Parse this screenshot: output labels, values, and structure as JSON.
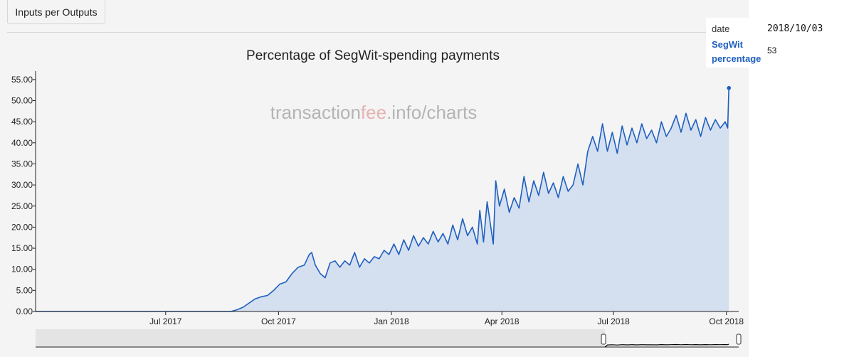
{
  "toolbar": {
    "tab_label": "Inputs per Outputs"
  },
  "tooltip": {
    "date_label": "date",
    "date_value": "2018/10/03",
    "series_label": "SegWit percentage",
    "value": "53"
  },
  "watermark": {
    "prefix": "transaction",
    "accent": "fee",
    "suffix": ".info/charts"
  },
  "colors": {
    "line": "#1f5fbf",
    "area": "#d4e0f0",
    "background": "#f4f4f4",
    "tooltip_label": "#1f5fbf",
    "watermark_accent": "#e6b2b2"
  },
  "chart_data": {
    "type": "area",
    "title": "Percentage of SegWit-spending payments",
    "xlabel": "",
    "ylabel": "",
    "ylim": [
      0,
      57
    ],
    "y_ticks": [
      "0.00",
      "5.00",
      "10.00",
      "15.00",
      "20.00",
      "25.00",
      "30.00",
      "35.00",
      "40.00",
      "45.00",
      "50.00",
      "55.00"
    ],
    "x_range": [
      "2017-03-17",
      "2018-10-11"
    ],
    "x_tick_labels": [
      {
        "date": "2017-07-01",
        "label": "Jul 2017"
      },
      {
        "date": "2017-10-01",
        "label": "Oct 2017"
      },
      {
        "date": "2018-01-01",
        "label": "Jan 2018"
      },
      {
        "date": "2018-04-01",
        "label": "Apr 2018"
      },
      {
        "date": "2018-07-01",
        "label": "Jul 2018"
      },
      {
        "date": "2018-10-01",
        "label": "Oct 2018"
      }
    ],
    "grid": false,
    "legend": "none",
    "series": [
      {
        "name": "SegWit percentage",
        "points": [
          [
            "2017-03-17",
            0
          ],
          [
            "2017-05-01",
            0
          ],
          [
            "2017-06-15",
            0
          ],
          [
            "2017-08-01",
            0
          ],
          [
            "2017-08-23",
            0
          ],
          [
            "2017-08-28",
            0.4
          ],
          [
            "2017-09-02",
            1
          ],
          [
            "2017-09-07",
            2
          ],
          [
            "2017-09-12",
            3
          ],
          [
            "2017-09-17",
            3.5
          ],
          [
            "2017-09-22",
            3.8
          ],
          [
            "2017-09-27",
            5
          ],
          [
            "2017-10-02",
            6.5
          ],
          [
            "2017-10-07",
            7
          ],
          [
            "2017-10-12",
            9
          ],
          [
            "2017-10-17",
            10.5
          ],
          [
            "2017-10-22",
            11
          ],
          [
            "2017-10-26",
            13.5
          ],
          [
            "2017-10-28",
            14
          ],
          [
            "2017-10-31",
            11
          ],
          [
            "2017-11-04",
            9
          ],
          [
            "2017-11-08",
            8
          ],
          [
            "2017-11-12",
            11.5
          ],
          [
            "2017-11-16",
            12
          ],
          [
            "2017-11-20",
            10.5
          ],
          [
            "2017-11-24",
            12
          ],
          [
            "2017-11-28",
            11
          ],
          [
            "2017-12-02",
            14
          ],
          [
            "2017-12-06",
            10.5
          ],
          [
            "2017-12-10",
            12.5
          ],
          [
            "2017-12-14",
            11.5
          ],
          [
            "2017-12-18",
            13
          ],
          [
            "2017-12-22",
            12.5
          ],
          [
            "2017-12-26",
            14.5
          ],
          [
            "2017-12-30",
            13.5
          ],
          [
            "2018-01-03",
            16
          ],
          [
            "2018-01-07",
            13.5
          ],
          [
            "2018-01-11",
            17
          ],
          [
            "2018-01-15",
            14.5
          ],
          [
            "2018-01-19",
            18
          ],
          [
            "2018-01-23",
            15.5
          ],
          [
            "2018-01-27",
            17.5
          ],
          [
            "2018-01-31",
            16
          ],
          [
            "2018-02-04",
            19
          ],
          [
            "2018-02-08",
            16.5
          ],
          [
            "2018-02-12",
            18.5
          ],
          [
            "2018-02-16",
            16
          ],
          [
            "2018-02-20",
            20.5
          ],
          [
            "2018-02-24",
            17
          ],
          [
            "2018-02-28",
            22
          ],
          [
            "2018-03-04",
            18
          ],
          [
            "2018-03-08",
            20
          ],
          [
            "2018-03-12",
            16
          ],
          [
            "2018-03-14",
            24
          ],
          [
            "2018-03-17",
            16.5
          ],
          [
            "2018-03-20",
            26
          ],
          [
            "2018-03-23",
            20
          ],
          [
            "2018-03-25",
            16
          ],
          [
            "2018-03-27",
            31
          ],
          [
            "2018-03-30",
            25
          ],
          [
            "2018-04-03",
            29
          ],
          [
            "2018-04-07",
            23.5
          ],
          [
            "2018-04-11",
            27
          ],
          [
            "2018-04-15",
            24.5
          ],
          [
            "2018-04-19",
            32
          ],
          [
            "2018-04-23",
            26
          ],
          [
            "2018-04-27",
            31
          ],
          [
            "2018-05-01",
            27.5
          ],
          [
            "2018-05-05",
            33
          ],
          [
            "2018-05-09",
            28
          ],
          [
            "2018-05-13",
            30.5
          ],
          [
            "2018-05-17",
            27
          ],
          [
            "2018-05-21",
            32
          ],
          [
            "2018-05-25",
            28.5
          ],
          [
            "2018-05-29",
            30
          ],
          [
            "2018-06-02",
            35
          ],
          [
            "2018-06-06",
            30
          ],
          [
            "2018-06-10",
            38
          ],
          [
            "2018-06-14",
            41.5
          ],
          [
            "2018-06-18",
            38
          ],
          [
            "2018-06-22",
            44.5
          ],
          [
            "2018-06-26",
            38
          ],
          [
            "2018-06-30",
            42.5
          ],
          [
            "2018-07-04",
            37.5
          ],
          [
            "2018-07-08",
            44
          ],
          [
            "2018-07-12",
            39.5
          ],
          [
            "2018-07-16",
            43.5
          ],
          [
            "2018-07-20",
            40
          ],
          [
            "2018-07-24",
            44.5
          ],
          [
            "2018-07-28",
            41
          ],
          [
            "2018-08-01",
            43
          ],
          [
            "2018-08-05",
            40
          ],
          [
            "2018-08-09",
            45
          ],
          [
            "2018-08-13",
            41.5
          ],
          [
            "2018-08-17",
            43.5
          ],
          [
            "2018-08-21",
            46.5
          ],
          [
            "2018-08-25",
            42.5
          ],
          [
            "2018-08-29",
            47
          ],
          [
            "2018-09-02",
            43
          ],
          [
            "2018-09-06",
            45.5
          ],
          [
            "2018-09-10",
            41.5
          ],
          [
            "2018-09-14",
            46
          ],
          [
            "2018-09-18",
            43
          ],
          [
            "2018-09-22",
            45.5
          ],
          [
            "2018-09-26",
            43.5
          ],
          [
            "2018-09-30",
            45
          ],
          [
            "2018-10-02",
            43.5
          ],
          [
            "2018-10-03",
            53
          ]
        ]
      }
    ],
    "highlight_point": [
      "2018-10-03",
      53
    ]
  }
}
